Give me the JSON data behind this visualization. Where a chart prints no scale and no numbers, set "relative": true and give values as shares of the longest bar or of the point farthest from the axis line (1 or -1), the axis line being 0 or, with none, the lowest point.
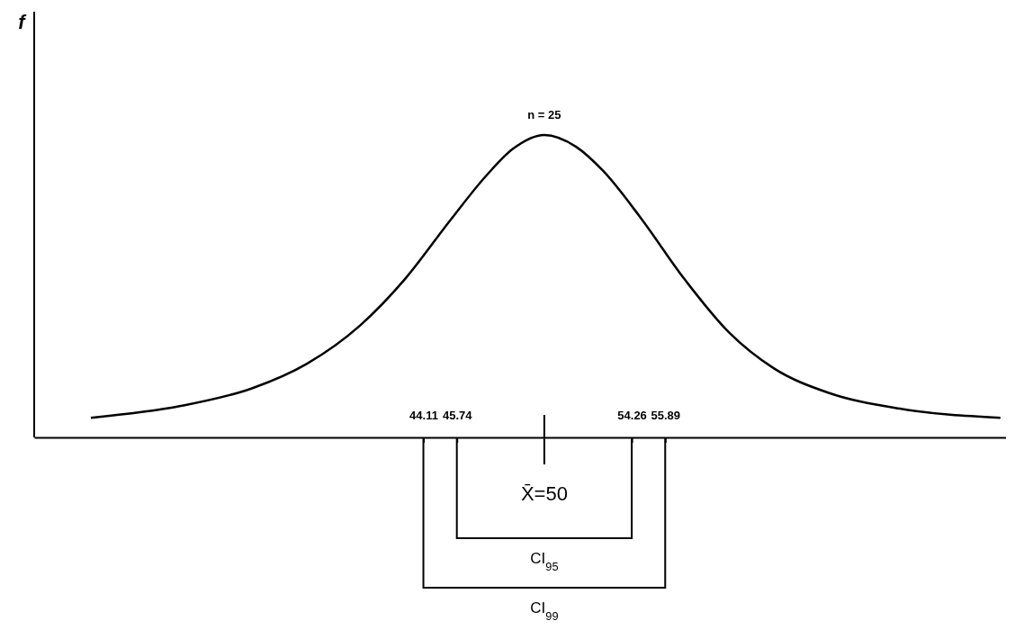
{
  "chart_data": {
    "type": "line",
    "relative": true,
    "tick_labels": "x",
    "xlim": [
      25.15,
      72.58
    ],
    "marker": "none",
    "line_style": "solid",
    "xticks": [
      44.11,
      45.74,
      54.26,
      55.89
    ],
    "ref_lines": [
      {
        "axis": "x",
        "value": 50,
        "label": "X̄=50"
      }
    ],
    "series": [
      {
        "color": "#000000",
        "x": [
          27.91,
          32.29,
          35.79,
          38.42,
          41.04,
          43.23,
          45.42,
          47.18,
          48.49,
          50,
          51.55,
          52.87,
          54.62,
          56.81,
          59.0,
          61.19,
          63.82,
          67.32,
          72.22
        ],
        "values": [
          0.065,
          0.104,
          0.163,
          0.243,
          0.371,
          0.525,
          0.718,
          0.866,
          0.955,
          1,
          0.961,
          0.881,
          0.733,
          0.525,
          0.347,
          0.228,
          0.148,
          0.095,
          0.065
        ]
      }
    ],
    "annotations": [
      "f",
      {
        "text": "n = 25",
        "x": 50,
        "y": 1
      },
      "CI$_{95}$",
      "CI$_{99}$"
    ]
  }
}
